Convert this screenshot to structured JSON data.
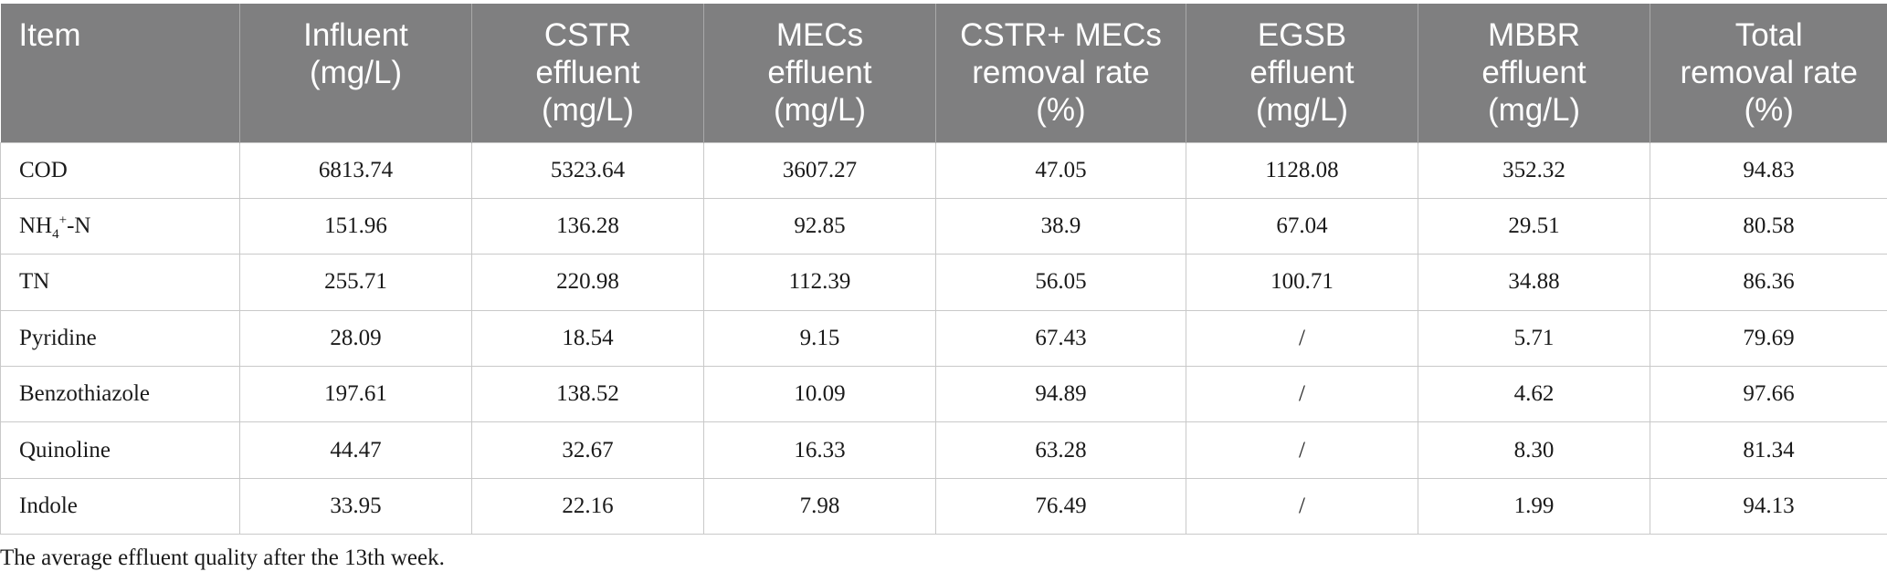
{
  "table": {
    "headers": [
      [
        "Item"
      ],
      [
        "Influent",
        "(mg/L)"
      ],
      [
        "CSTR",
        "effluent",
        "(mg/L)"
      ],
      [
        "MECs",
        "effluent",
        "(mg/L)"
      ],
      [
        "CSTR+ MECs",
        "removal rate",
        "(%)"
      ],
      [
        "EGSB",
        "effluent",
        "(mg/L)"
      ],
      [
        "MBBR",
        "effluent",
        "(mg/L)"
      ],
      [
        "Total",
        "removal rate",
        "(%)"
      ]
    ],
    "rows": [
      {
        "item": {
          "base": "COD"
        },
        "values": [
          "6813.74",
          "5323.64",
          "3607.27",
          "47.05",
          "1128.08",
          "352.32",
          "94.83"
        ]
      },
      {
        "item": {
          "base": "NH",
          "sub": "4",
          "sup": "+",
          "suffix": "-N"
        },
        "values": [
          "151.96",
          "136.28",
          "92.85",
          "38.9",
          "67.04",
          "29.51",
          "80.58"
        ]
      },
      {
        "item": {
          "base": "TN"
        },
        "values": [
          "255.71",
          "220.98",
          "112.39",
          "56.05",
          "100.71",
          "34.88",
          "86.36"
        ]
      },
      {
        "item": {
          "base": "Pyridine"
        },
        "values": [
          "28.09",
          "18.54",
          "9.15",
          "67.43",
          "/",
          "5.71",
          "79.69"
        ]
      },
      {
        "item": {
          "base": "Benzothiazole"
        },
        "values": [
          "197.61",
          "138.52",
          "10.09",
          "94.89",
          "/",
          "4.62",
          "97.66"
        ]
      },
      {
        "item": {
          "base": "Quinoline"
        },
        "values": [
          "44.47",
          "32.67",
          "16.33",
          "63.28",
          "/",
          "8.30",
          "81.34"
        ]
      },
      {
        "item": {
          "base": "Indole"
        },
        "values": [
          "33.95",
          "22.16",
          "7.98",
          "76.49",
          "/",
          "1.99",
          "94.13"
        ]
      }
    ]
  },
  "footnote": "The average effluent quality after the 13th week."
}
